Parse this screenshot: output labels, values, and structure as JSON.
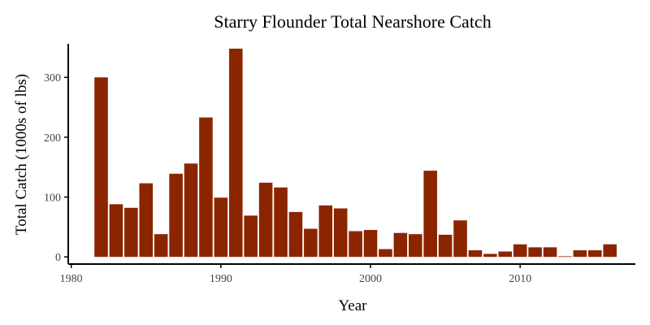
{
  "chart_data": {
    "type": "bar",
    "title": "Starry Flounder Total Nearshore Catch",
    "xlabel": "Year",
    "ylabel": "Total Catch (1000s of lbs)",
    "x": [
      1982,
      1983,
      1984,
      1985,
      1986,
      1987,
      1988,
      1989,
      1990,
      1991,
      1992,
      1993,
      1994,
      1995,
      1996,
      1997,
      1998,
      1999,
      2000,
      2001,
      2002,
      2003,
      2004,
      2005,
      2006,
      2007,
      2008,
      2009,
      2010,
      2011,
      2012,
      2013,
      2014,
      2015,
      2016
    ],
    "values": [
      300,
      88,
      82,
      123,
      38,
      139,
      156,
      233,
      99,
      348,
      69,
      124,
      116,
      75,
      47,
      86,
      81,
      43,
      45,
      13,
      40,
      38,
      144,
      37,
      61,
      11,
      5,
      9,
      21,
      16,
      16,
      1,
      11,
      11,
      21
    ],
    "xlim": [
      1979.8,
      2017.7
    ],
    "ylim": [
      -12,
      356
    ],
    "xticks": [
      1980,
      1990,
      2000,
      2010
    ],
    "yticks": [
      0,
      100,
      200,
      300
    ],
    "xtick_labels": [
      "1980",
      "1990",
      "2000",
      "2010"
    ],
    "ytick_labels": [
      "0",
      "100",
      "200",
      "300"
    ],
    "bar_color": "#8B2500",
    "grid": false,
    "legend": "none"
  }
}
